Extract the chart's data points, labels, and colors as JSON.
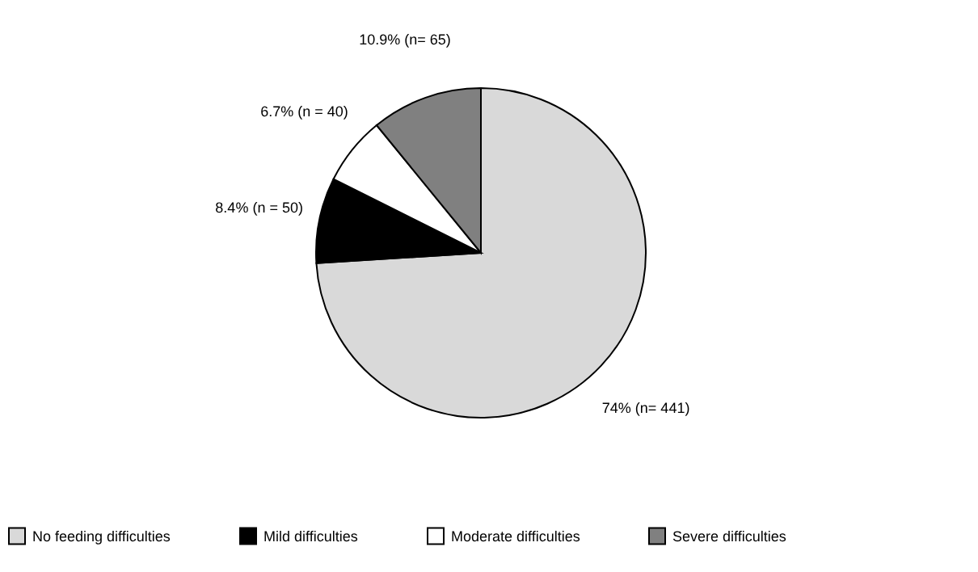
{
  "chart_data": {
    "type": "pie",
    "categories": [
      "No feeding difficulties",
      "Mild difficulties",
      "Moderate difficulties",
      "Severe difficulties"
    ],
    "values": [
      74,
      8.4,
      6.7,
      10.9
    ],
    "colors": [
      "#d9d9d9",
      "#000000",
      "#ffffff",
      "#808080"
    ],
    "value_labels": [
      "74%  (n= 441)",
      "8.4% (n = 50)",
      "6.7% (n = 40)",
      "10.9% (n= 65)"
    ],
    "legend": "bottom"
  }
}
